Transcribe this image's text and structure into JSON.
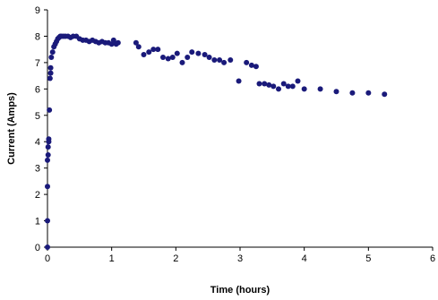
{
  "chart_data": {
    "type": "scatter",
    "title": "",
    "xlabel": "Time (hours)",
    "ylabel": "Current (Amps)",
    "xlim": [
      0,
      6
    ],
    "ylim": [
      0,
      9
    ],
    "x_ticks": [
      "0",
      "1",
      "2",
      "3",
      "4",
      "5",
      "6"
    ],
    "y_ticks": [
      "0",
      "1",
      "2",
      "3",
      "4",
      "5",
      "6",
      "7",
      "8",
      "9"
    ],
    "grid": false,
    "legend": "none",
    "marker_color": "#1a1a7a",
    "points": [
      [
        0.0,
        0.0
      ],
      [
        0.0,
        1.0
      ],
      [
        0.0,
        2.3
      ],
      [
        0.0,
        3.3
      ],
      [
        0.01,
        3.5
      ],
      [
        0.01,
        3.8
      ],
      [
        0.02,
        4.0
      ],
      [
        0.02,
        4.1
      ],
      [
        0.03,
        5.2
      ],
      [
        0.04,
        6.4
      ],
      [
        0.05,
        6.6
      ],
      [
        0.05,
        6.8
      ],
      [
        0.06,
        7.2
      ],
      [
        0.08,
        7.4
      ],
      [
        0.1,
        7.6
      ],
      [
        0.12,
        7.7
      ],
      [
        0.14,
        7.8
      ],
      [
        0.16,
        7.9
      ],
      [
        0.18,
        7.95
      ],
      [
        0.2,
        8.0
      ],
      [
        0.22,
        8.0
      ],
      [
        0.25,
        8.0
      ],
      [
        0.28,
        8.0
      ],
      [
        0.32,
        8.0
      ],
      [
        0.36,
        7.95
      ],
      [
        0.4,
        8.0
      ],
      [
        0.45,
        8.0
      ],
      [
        0.5,
        7.9
      ],
      [
        0.55,
        7.85
      ],
      [
        0.6,
        7.85
      ],
      [
        0.65,
        7.8
      ],
      [
        0.7,
        7.85
      ],
      [
        0.75,
        7.8
      ],
      [
        0.8,
        7.75
      ],
      [
        0.85,
        7.8
      ],
      [
        0.9,
        7.75
      ],
      [
        0.95,
        7.75
      ],
      [
        1.0,
        7.7
      ],
      [
        1.03,
        7.85
      ],
      [
        1.07,
        7.7
      ],
      [
        1.1,
        7.75
      ],
      [
        1.38,
        7.75
      ],
      [
        1.42,
        7.6
      ],
      [
        1.5,
        7.3
      ],
      [
        1.58,
        7.4
      ],
      [
        1.65,
        7.5
      ],
      [
        1.72,
        7.5
      ],
      [
        1.8,
        7.2
      ],
      [
        1.88,
        7.15
      ],
      [
        1.95,
        7.2
      ],
      [
        2.02,
        7.35
      ],
      [
        2.1,
        7.0
      ],
      [
        2.18,
        7.2
      ],
      [
        2.25,
        7.4
      ],
      [
        2.35,
        7.35
      ],
      [
        2.45,
        7.3
      ],
      [
        2.52,
        7.2
      ],
      [
        2.6,
        7.1
      ],
      [
        2.68,
        7.1
      ],
      [
        2.75,
        7.0
      ],
      [
        2.85,
        7.1
      ],
      [
        2.98,
        6.3
      ],
      [
        3.1,
        7.0
      ],
      [
        3.18,
        6.9
      ],
      [
        3.25,
        6.85
      ],
      [
        3.3,
        6.2
      ],
      [
        3.38,
        6.2
      ],
      [
        3.45,
        6.15
      ],
      [
        3.52,
        6.1
      ],
      [
        3.6,
        6.0
      ],
      [
        3.68,
        6.2
      ],
      [
        3.75,
        6.1
      ],
      [
        3.82,
        6.1
      ],
      [
        3.9,
        6.3
      ],
      [
        4.0,
        6.0
      ],
      [
        4.25,
        6.0
      ],
      [
        4.5,
        5.9
      ],
      [
        4.75,
        5.85
      ],
      [
        5.0,
        5.85
      ],
      [
        5.25,
        5.8
      ]
    ]
  }
}
